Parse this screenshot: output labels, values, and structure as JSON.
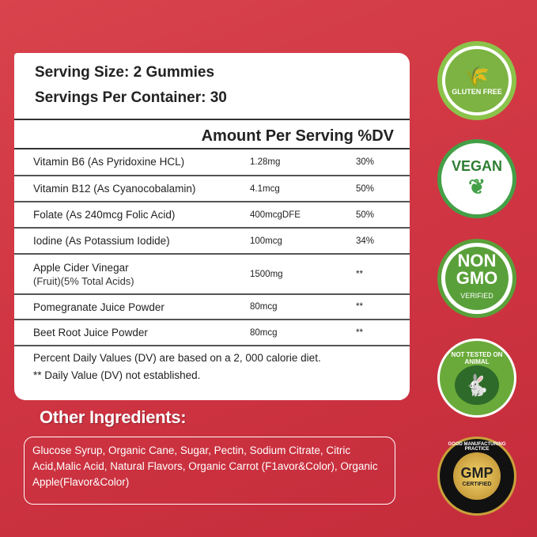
{
  "facts": {
    "serving_size": "Serving Size: 2 Gummies",
    "servings_per_container": "Servings Per Container: 30",
    "header": "Amount Per Serving %DV",
    "rows": [
      {
        "name": "Vitamin B6 (As Pyridoxine HCL)",
        "amount": "1.28mg",
        "dv": "30%"
      },
      {
        "name": "Vitamin B12 (As Cyanocobalamin)",
        "amount": "4.1mcg",
        "dv": "50%"
      },
      {
        "name": "Folate (As 240mcg Folic Acid)",
        "amount": "400mcgDFE",
        "dv": "50%"
      },
      {
        "name": "Iodine (As Potassium Iodide)",
        "amount": "100mcg",
        "dv": "34%"
      },
      {
        "name": "Apple Cider Vinegar",
        "sub": "(Fruit)(5% Total Acids)",
        "amount": "1500mg",
        "dv": "**"
      },
      {
        "name": "Pomegranate Juice Powder",
        "amount": "80mcg",
        "dv": "**"
      },
      {
        "name": "Beet Root Juice Powder",
        "amount": "80mcg",
        "dv": "**"
      }
    ],
    "footnote1": "Percent Daily Values (DV) are based on a 2, 000 calorie diet.",
    "footnote2": "** Daily Value (DV) not established."
  },
  "other": {
    "title": "Other Ingredients:",
    "text": "Glucose Syrup, Organic Cane, Sugar, Pectin, Sodium Citrate, Citric Acid,Malic Acid, Natural Flavors, Organic Carrot (F1avor&Color), Organic Apple(Flavor&Color)"
  },
  "badges": {
    "gluten": "GLUTEN FREE",
    "vegan": "VEGAN",
    "nongmo1": "NON",
    "nongmo2": "GMO",
    "nongmo3": "VERIFIED",
    "animal": "NOT TESTED ON ANIMAL",
    "gmp": "GMP",
    "gmp_sub": "CERTIFIED",
    "gmp_ring": "GOOD MANUFACTURING PRACTICE"
  },
  "colors": {
    "background": "#cf3542",
    "badge_green": "#7cb342",
    "gmp_gold": "#c9a13a"
  }
}
